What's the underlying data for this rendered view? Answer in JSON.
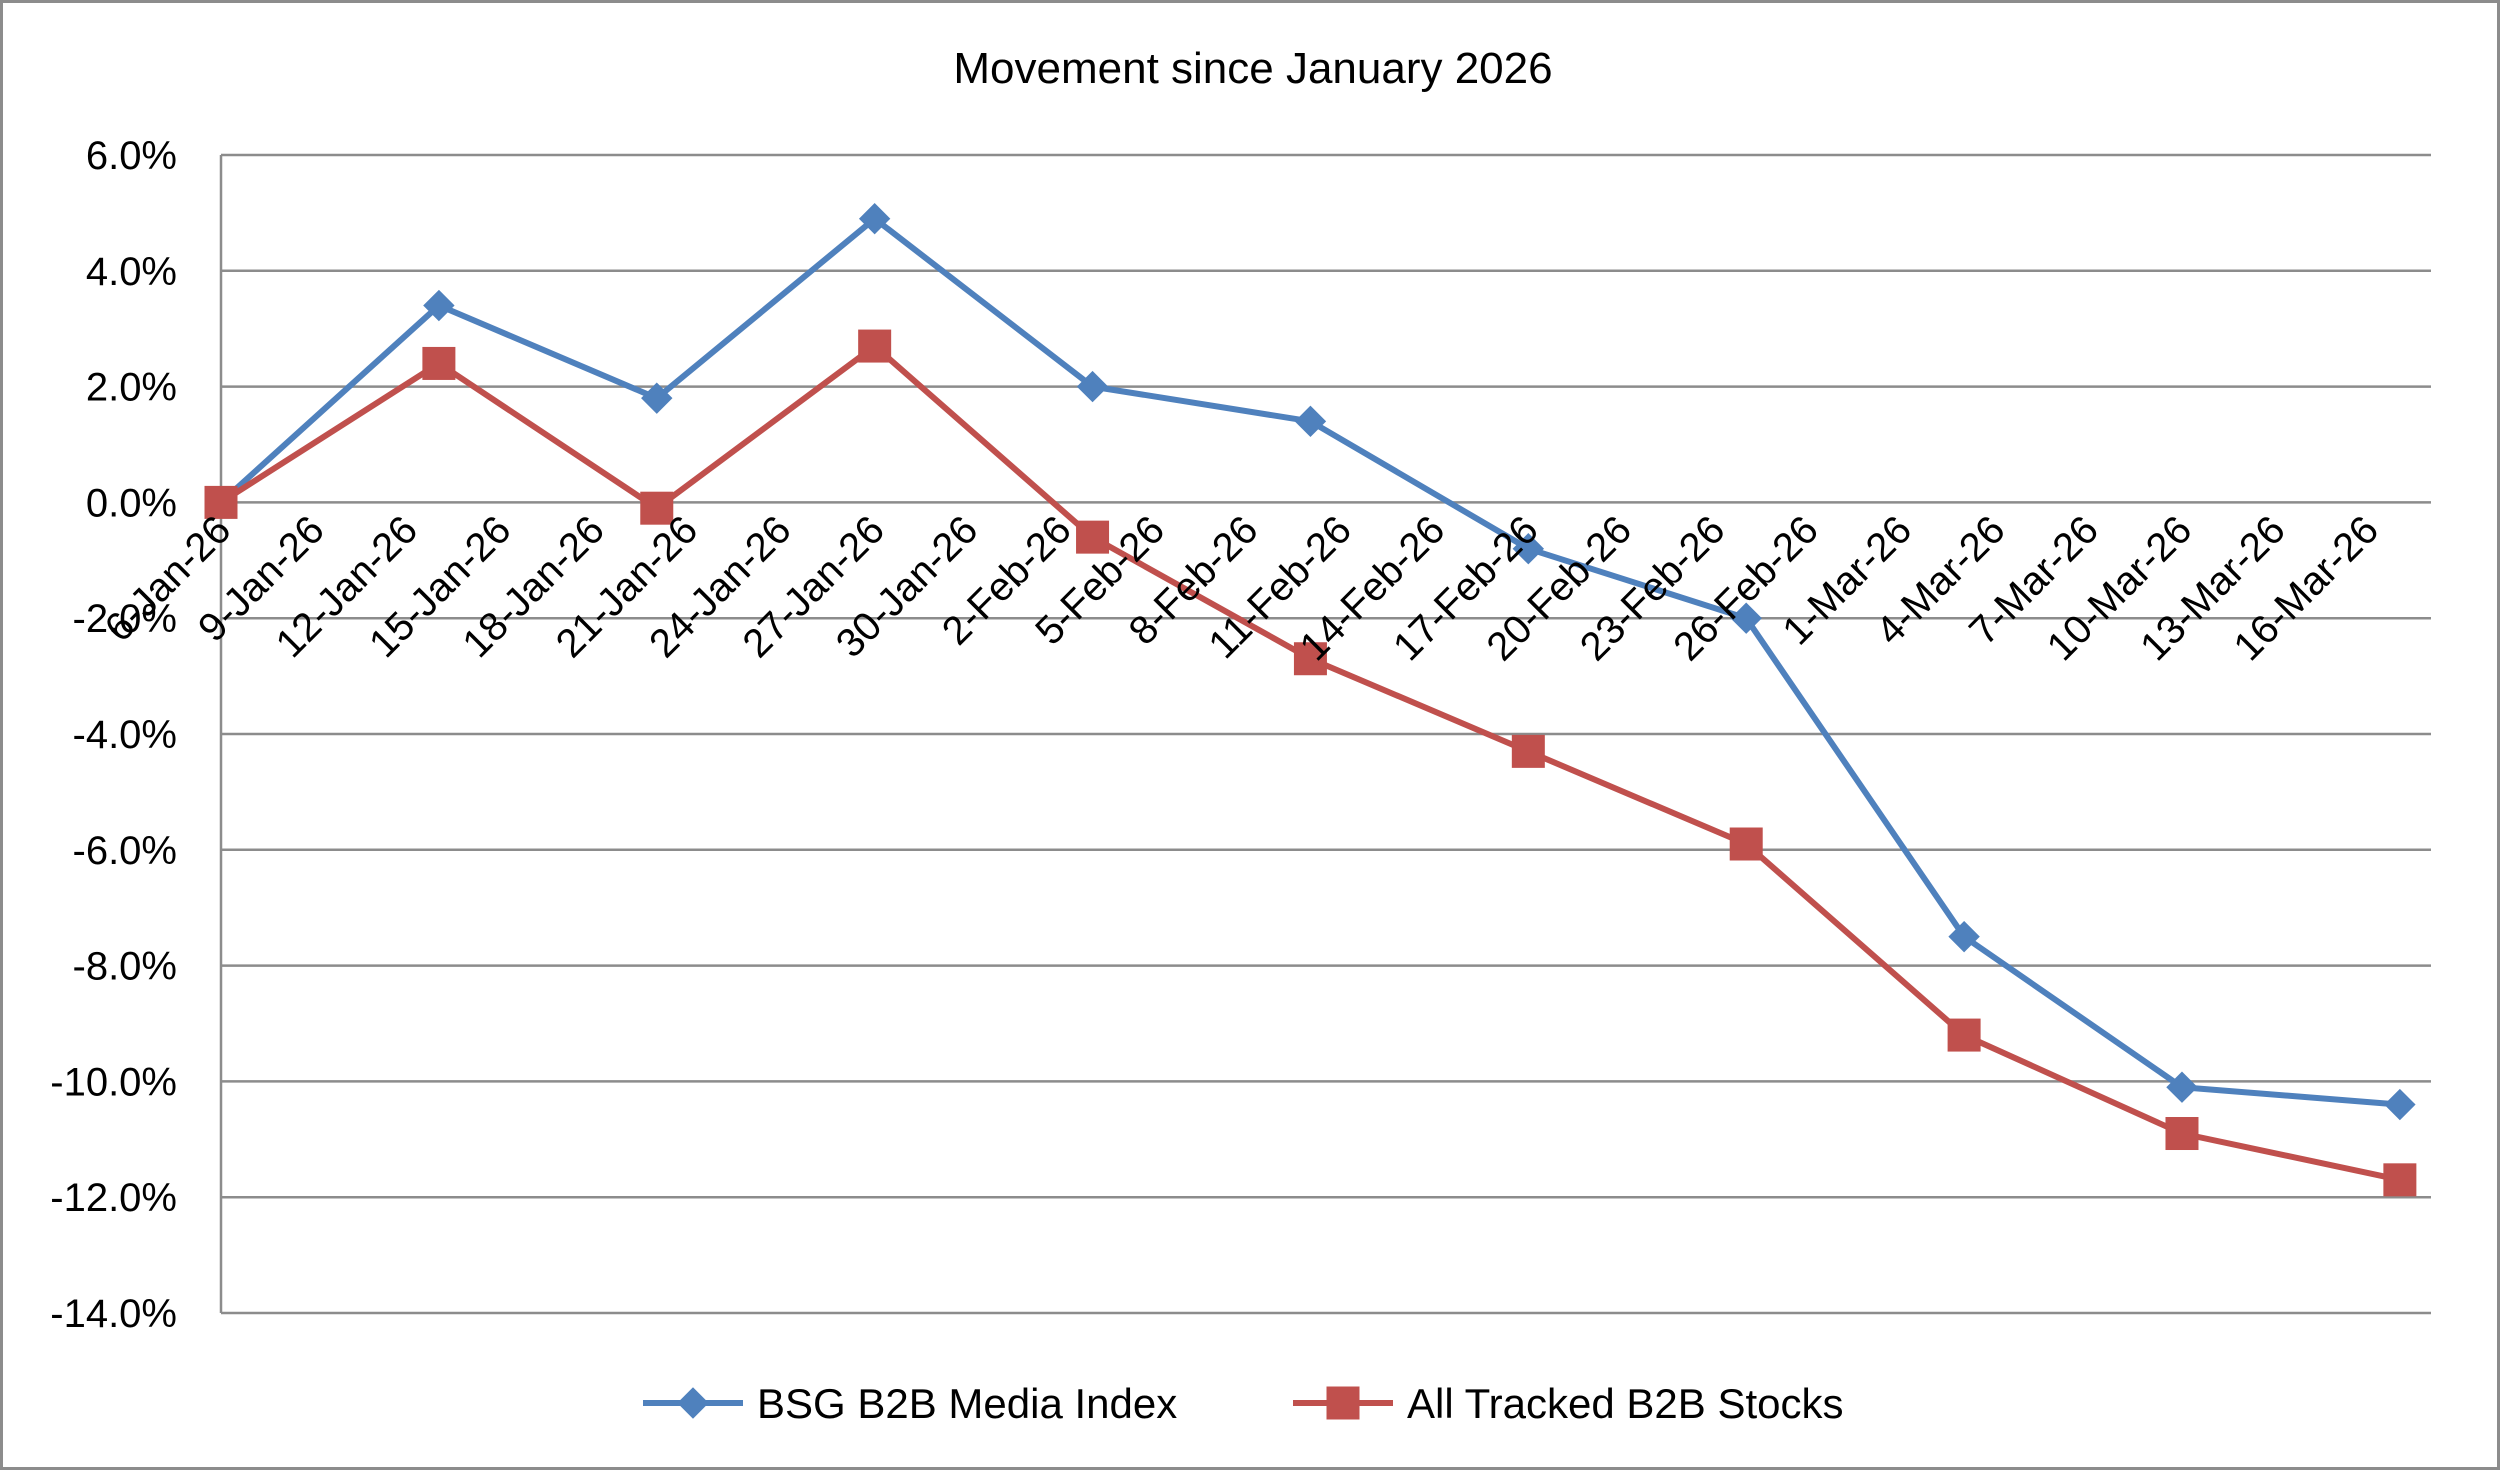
{
  "chart_data": {
    "type": "line",
    "title": "Movement since January 2026",
    "xlabel": "",
    "ylabel": "",
    "ylim": [
      -14.0,
      6.0
    ],
    "ytick_step": 2.0,
    "yticks": [
      "6.0%",
      "4.0%",
      "2.0%",
      "0.0%",
      "-2.0%",
      "-4.0%",
      "-6.0%",
      "-8.0%",
      "-10.0%",
      "-12.0%",
      "-14.0%"
    ],
    "x_tick_labels": [
      "6-Jan-26",
      "9-Jan-26",
      "12-Jan-26",
      "15-Jan-26",
      "18-Jan-26",
      "21-Jan-26",
      "24-Jan-26",
      "27-Jan-26",
      "30-Jan-26",
      "2-Feb-26",
      "5-Feb-26",
      "8-Feb-26",
      "11-Feb-26",
      "14-Feb-26",
      "17-Feb-26",
      "20-Feb-26",
      "23-Feb-26",
      "26-Feb-26",
      "1-Mar-26",
      "4-Mar-26",
      "7-Mar-26",
      "10-Mar-26",
      "13-Mar-26",
      "16-Mar-26"
    ],
    "x_range": [
      "2026-01-06",
      "2026-03-18"
    ],
    "grid": "horizontal",
    "legend_position": "bottom",
    "series": [
      {
        "name": "BSG B2B Media Index",
        "color": "#4f81bd",
        "marker": "diamond",
        "points": [
          {
            "x": "2026-01-06",
            "y": 0.0
          },
          {
            "x": "2026-01-13",
            "y": 3.4
          },
          {
            "x": "2026-01-20",
            "y": 1.8
          },
          {
            "x": "2026-01-27",
            "y": 4.9
          },
          {
            "x": "2026-02-03",
            "y": 2.0
          },
          {
            "x": "2026-02-10",
            "y": 1.4
          },
          {
            "x": "2026-02-17",
            "y": -0.8
          },
          {
            "x": "2026-02-24",
            "y": -2.0
          },
          {
            "x": "2026-03-03",
            "y": -7.5
          },
          {
            "x": "2026-03-10",
            "y": -10.1
          },
          {
            "x": "2026-03-17",
            "y": -10.4
          }
        ]
      },
      {
        "name": "All Tracked B2B Stocks",
        "color": "#c0504d",
        "marker": "square",
        "points": [
          {
            "x": "2026-01-06",
            "y": 0.0
          },
          {
            "x": "2026-01-13",
            "y": 2.4
          },
          {
            "x": "2026-01-20",
            "y": -0.1
          },
          {
            "x": "2026-01-27",
            "y": 2.7
          },
          {
            "x": "2026-02-03",
            "y": -0.6
          },
          {
            "x": "2026-02-10",
            "y": -2.7
          },
          {
            "x": "2026-02-17",
            "y": -4.3
          },
          {
            "x": "2026-02-24",
            "y": -5.9
          },
          {
            "x": "2026-03-03",
            "y": -9.2
          },
          {
            "x": "2026-03-10",
            "y": -10.9
          },
          {
            "x": "2026-03-17",
            "y": -11.7
          }
        ]
      }
    ]
  }
}
